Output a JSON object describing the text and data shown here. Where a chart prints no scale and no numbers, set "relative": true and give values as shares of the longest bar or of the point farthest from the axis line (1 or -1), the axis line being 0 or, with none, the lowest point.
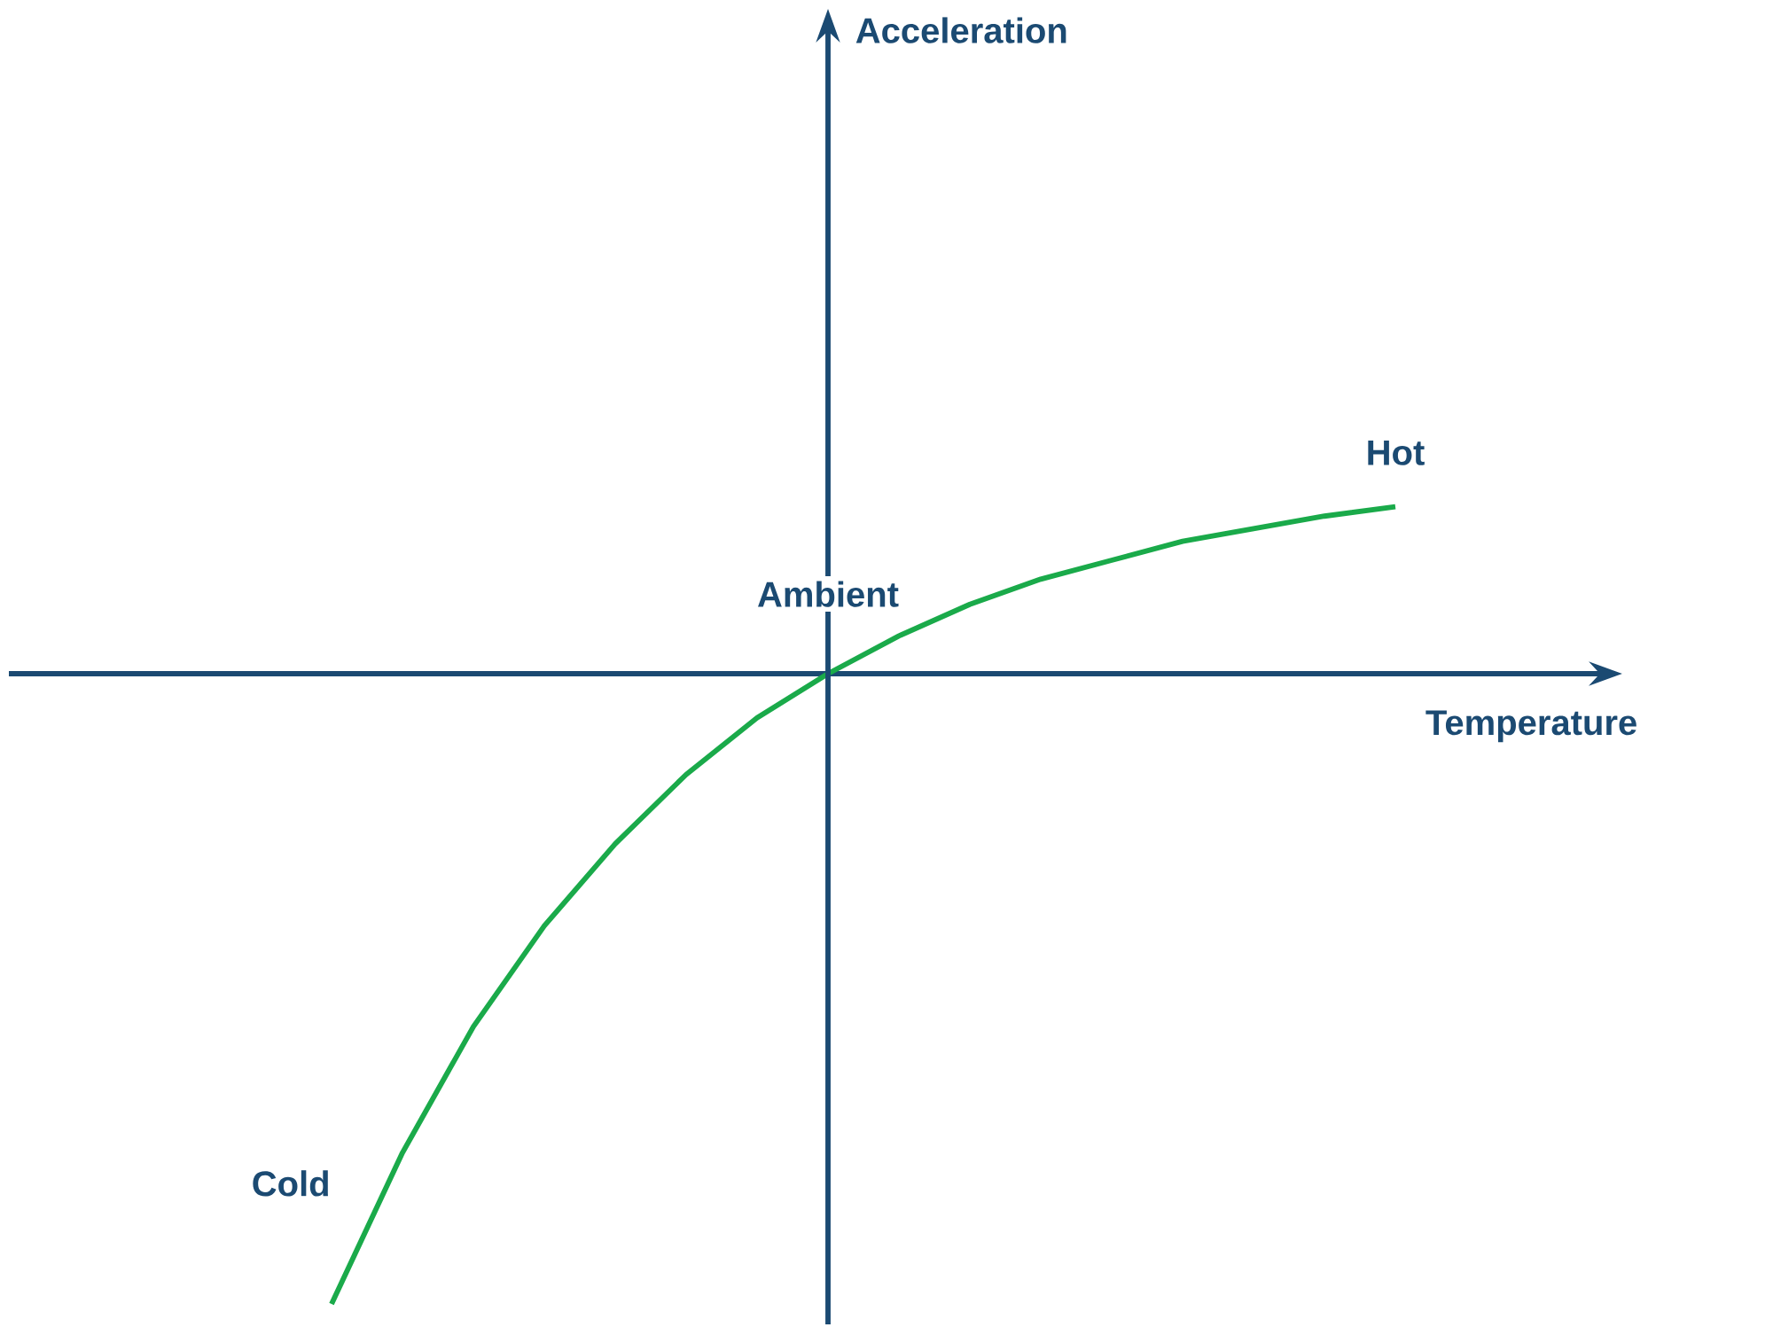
{
  "chart_data": {
    "type": "line",
    "relative": true,
    "xlabel": "Temperature",
    "categories": [
      null,
      null,
      null,
      null,
      null,
      null,
      null,
      null,
      null,
      null,
      null,
      null,
      null,
      null,
      null,
      null
    ],
    "series": [
      {
        "color": "#1aaa4a",
        "values": [
          -1,
          -0.76,
          -0.56,
          -0.4,
          -0.27,
          -0.16,
          -0.07,
          0,
          0.06,
          0.11,
          0.15,
          0.18,
          0.21,
          0.23,
          0.25,
          0.265
        ]
      }
    ],
    "annotations": [
      "Cold",
      "Ambient",
      "Hot",
      "Acceleration"
    ],
    "ref_lines": [
      {
        "axis": "y",
        "value": 0,
        "color": "#1b4a72"
      }
    ],
    "marker": "none",
    "line_style": "solid"
  }
}
